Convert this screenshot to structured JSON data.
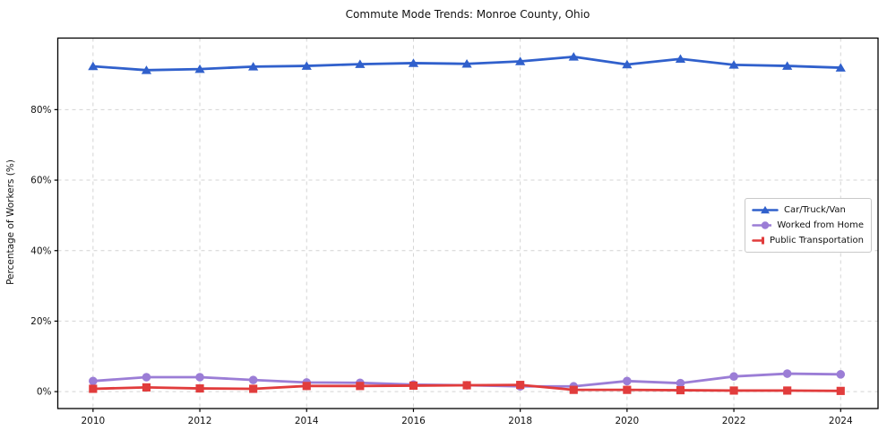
{
  "chart_data": {
    "type": "line",
    "title": "Commute Mode Trends: Monroe County, Ohio",
    "xlabel": "",
    "ylabel": "Percentage of Workers (%)",
    "x": [
      2010,
      2011,
      2012,
      2013,
      2014,
      2015,
      2016,
      2017,
      2018,
      2019,
      2020,
      2021,
      2022,
      2023,
      2024
    ],
    "series": [
      {
        "name": "Car/Truck/Van",
        "color": "#3060cc",
        "marker": "triangle",
        "values": [
          92.3,
          91.2,
          91.5,
          92.2,
          92.4,
          92.9,
          93.2,
          93.0,
          93.7,
          95.0,
          92.8,
          94.4,
          92.7,
          92.4,
          91.9
        ]
      },
      {
        "name": "Worked from Home",
        "color": "#9b7dd6",
        "marker": "circle",
        "values": [
          3.0,
          4.1,
          4.1,
          3.3,
          2.6,
          2.5,
          2.0,
          1.8,
          1.5,
          1.5,
          3.0,
          2.4,
          4.3,
          5.1,
          4.9
        ]
      },
      {
        "name": "Public Transportation",
        "color": "#e13c3c",
        "marker": "square",
        "values": [
          0.8,
          1.2,
          0.9,
          0.8,
          1.6,
          1.6,
          1.7,
          1.8,
          1.9,
          0.5,
          0.5,
          0.4,
          0.3,
          0.3,
          0.2
        ]
      }
    ],
    "x_tick_values": [
      2010,
      2012,
      2014,
      2016,
      2018,
      2020,
      2022,
      2024
    ],
    "x_tick_labels": [
      "2010",
      "2012",
      "2014",
      "2016",
      "2018",
      "2020",
      "2022",
      "2024"
    ],
    "y_tick_values": [
      0,
      20,
      40,
      60,
      80
    ],
    "y_tick_labels": [
      "0%",
      "20%",
      "40%",
      "60%",
      "80%"
    ],
    "xlim": [
      2009.34,
      2024.7
    ],
    "ylim": [
      -4.8,
      100.3
    ],
    "grid": true,
    "legend_position": "center-right",
    "grid_color": "#d4d4d4",
    "spine_color": "#000000",
    "text_color": "#111111"
  }
}
